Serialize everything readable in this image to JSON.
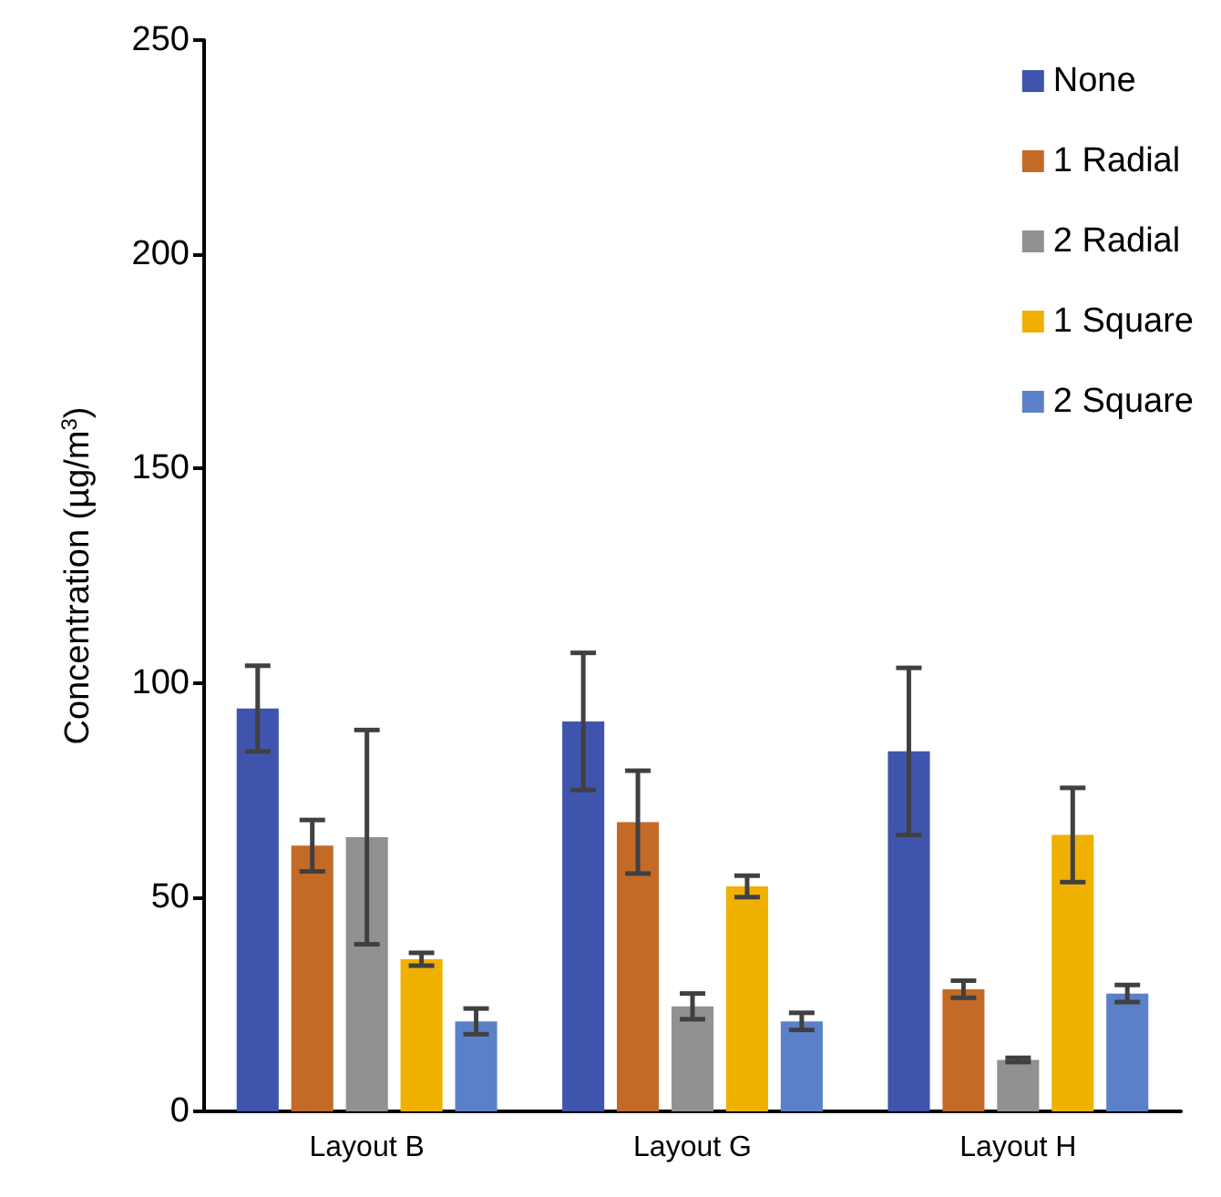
{
  "chart_data": {
    "type": "bar",
    "categories": [
      "Layout B",
      "Layout G",
      "Layout H"
    ],
    "ylabel": "Concentration (µg/m$^{3}$)",
    "ylim": [
      0,
      250
    ],
    "yticks": [
      0,
      50,
      100,
      150,
      200,
      250
    ],
    "grid": false,
    "legend": "top right",
    "series": [
      {
        "name": "None",
        "color": "#3f55ad",
        "values": [
          94,
          91,
          84
        ],
        "errors": [
          10,
          16,
          19.5
        ]
      },
      {
        "name": "1 Radial",
        "color": "#c46a27",
        "values": [
          62,
          67.5,
          28.5
        ],
        "errors": [
          6,
          12,
          2
        ]
      },
      {
        "name": "2 Radial",
        "color": "#919191",
        "values": [
          64,
          24.5,
          12
        ],
        "errors": [
          25,
          3,
          0.5
        ]
      },
      {
        "name": "1 Square",
        "color": "#f0b000",
        "values": [
          35.5,
          52.5,
          64.5
        ],
        "errors": [
          1.5,
          2.5,
          11
        ]
      },
      {
        "name": "2 Square",
        "color": "#5b80c8",
        "values": [
          21,
          21,
          27.5
        ],
        "errors": [
          3,
          2,
          2
        ]
      }
    ]
  }
}
